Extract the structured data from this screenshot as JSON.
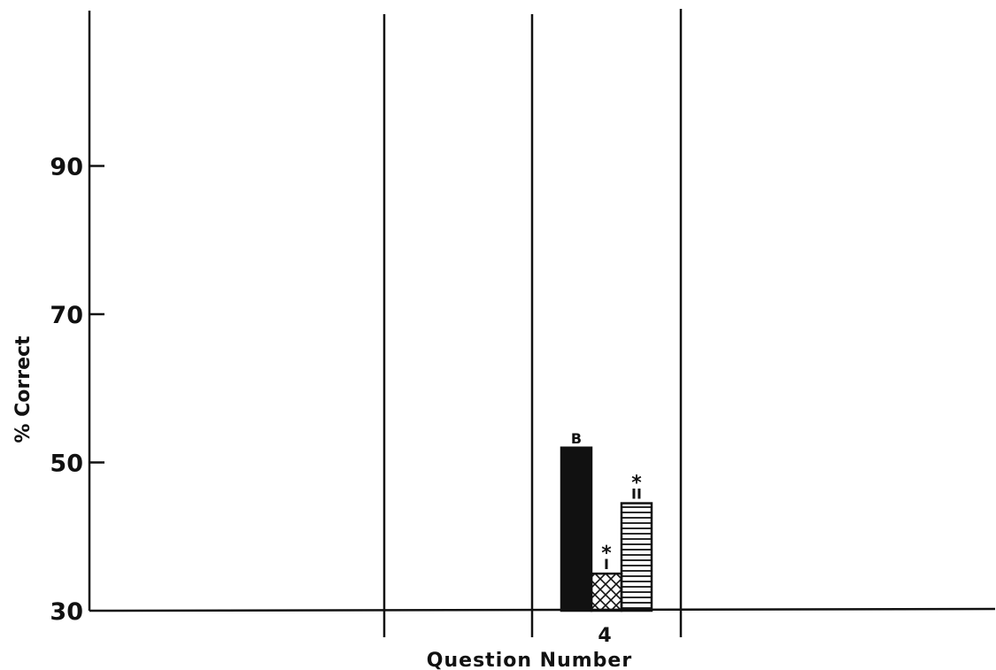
{
  "chart_data": {
    "type": "bar",
    "ylabel": "% Correct",
    "xlabel": "Question Number",
    "ylim": [
      30,
      110
    ],
    "yticks": [
      30,
      50,
      70,
      90
    ],
    "categories": [
      "4"
    ],
    "series": [
      {
        "name": "B",
        "values": [
          52
        ],
        "pattern": "solid",
        "marked": false
      },
      {
        "name": "I",
        "values": [
          35
        ],
        "pattern": "crosshatch",
        "marked": true
      },
      {
        "name": "II",
        "values": [
          44.5
        ],
        "pattern": "horizontal",
        "marked": true
      }
    ],
    "marker_symbol": "*",
    "grid": false
  }
}
